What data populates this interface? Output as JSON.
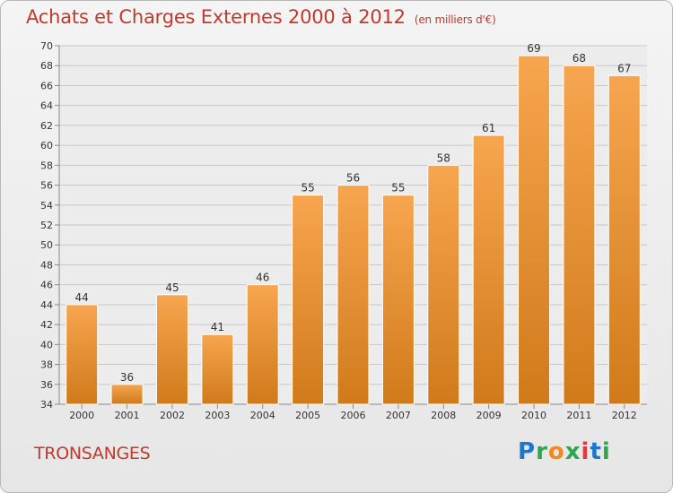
{
  "header": {
    "title": "Achats et Charges Externes 2000 à 2012",
    "unit": "(en milliers d'€)"
  },
  "footer": {
    "town": "TRONSANGES",
    "logo_text": "Proxiti"
  },
  "colors": {
    "bar_top": "#f7a54f",
    "bar_bottom": "#d07a1a",
    "title": "#c0392b",
    "grid": "#c8c8c8",
    "logo": [
      "#1f77c9",
      "#2ea84d",
      "#f18a1d",
      "#2ea84d",
      "#e23a3a",
      "#1f77c9",
      "#2ea84d"
    ]
  },
  "chart_data": {
    "type": "bar",
    "title": "Achats et Charges Externes 2000 à 2012",
    "subtitle": "(en milliers d'€)",
    "categories": [
      "2000",
      "2001",
      "2002",
      "2003",
      "2004",
      "2005",
      "2006",
      "2007",
      "2008",
      "2009",
      "2010",
      "2011",
      "2012"
    ],
    "values": [
      44,
      36,
      45,
      41,
      46,
      55,
      56,
      55,
      58,
      61,
      69,
      68,
      67
    ],
    "ylim": [
      34,
      70
    ],
    "yticks": [
      34,
      36,
      38,
      40,
      42,
      44,
      46,
      48,
      50,
      52,
      54,
      56,
      58,
      60,
      62,
      64,
      66,
      68,
      70
    ],
    "grid": true,
    "data_labels": true,
    "xlabel": "",
    "ylabel": ""
  }
}
